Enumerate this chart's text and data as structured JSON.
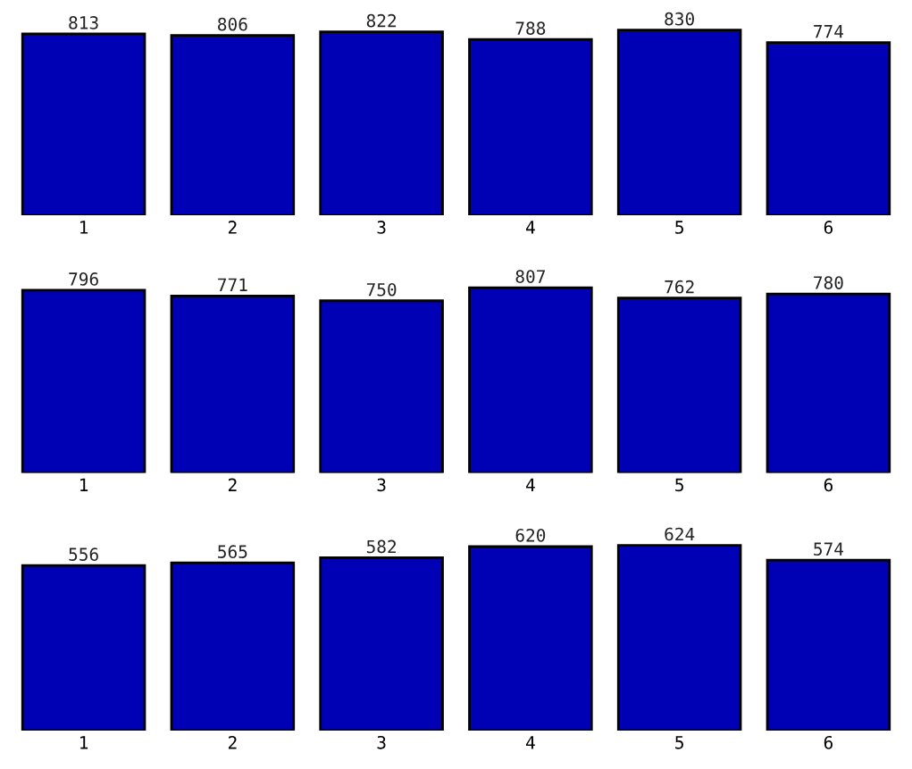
{
  "chart_data": [
    {
      "type": "bar",
      "categories": [
        "1",
        "2",
        "3",
        "4",
        "5",
        "6"
      ],
      "values": [
        813,
        806,
        822,
        788,
        830,
        774
      ],
      "color": "#0000b4",
      "data_labels": true,
      "tick_labels": "x",
      "grid": false,
      "legend": false
    },
    {
      "type": "bar",
      "categories": [
        "1",
        "2",
        "3",
        "4",
        "5",
        "6"
      ],
      "values": [
        796,
        771,
        750,
        807,
        762,
        780
      ],
      "color": "#0000b4",
      "data_labels": true,
      "tick_labels": "x",
      "grid": false,
      "legend": false
    },
    {
      "type": "bar",
      "categories": [
        "1",
        "2",
        "3",
        "4",
        "5",
        "6"
      ],
      "values": [
        556,
        565,
        582,
        620,
        624,
        574
      ],
      "color": "#0000b4",
      "data_labels": true,
      "tick_labels": "x",
      "grid": false,
      "legend": false
    }
  ]
}
